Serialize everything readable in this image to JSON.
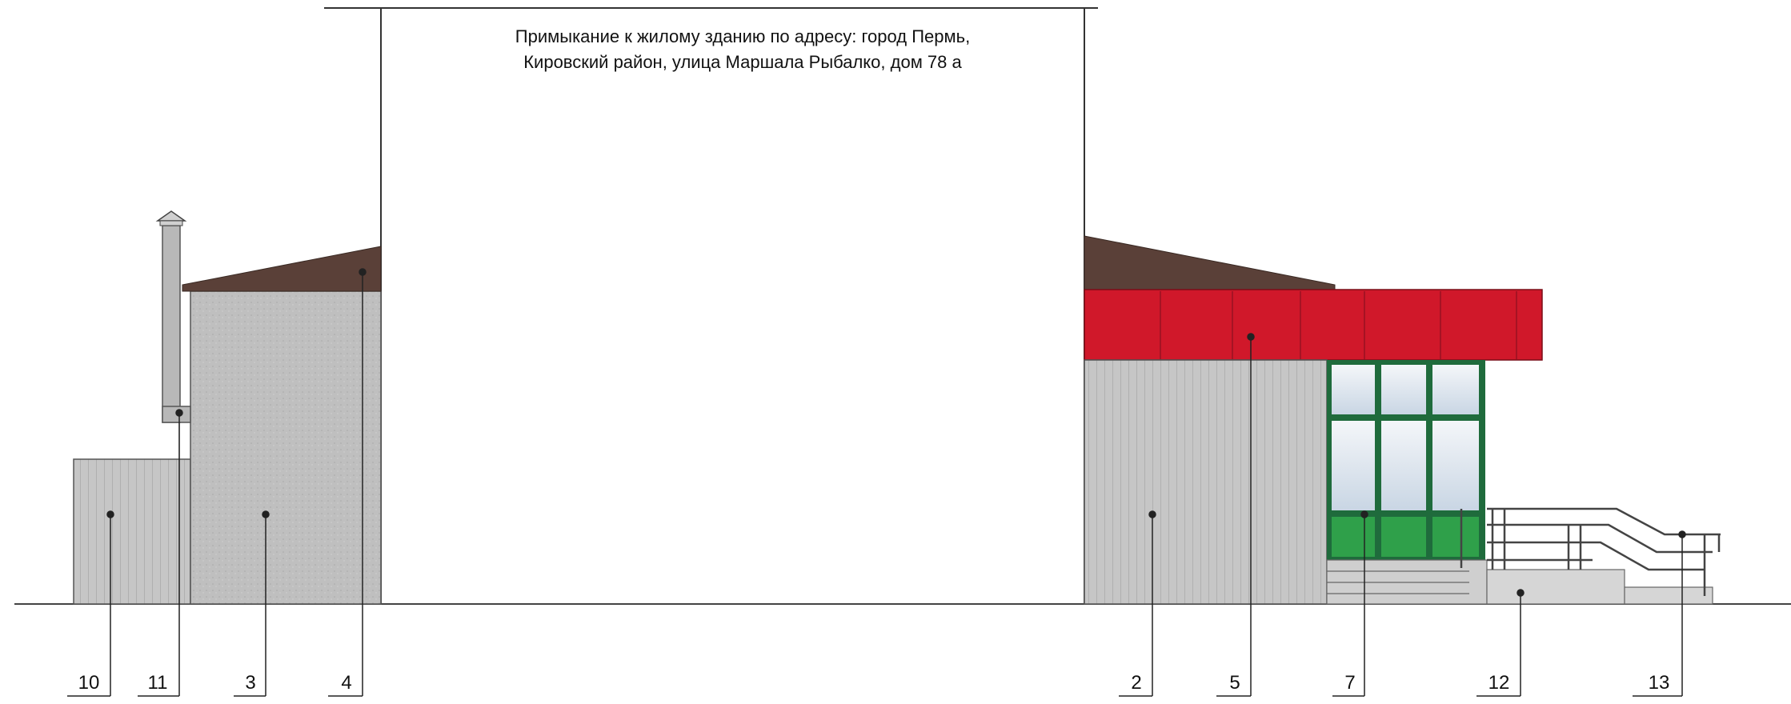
{
  "note": {
    "line1": "Примыкание к жилому зданию по адресу: город Пермь,",
    "line2": "Кировский район, улица Маршала Рыбалко, дом 78 а"
  },
  "callouts": [
    {
      "id": "10",
      "label": "10"
    },
    {
      "id": "11",
      "label": "11"
    },
    {
      "id": "3",
      "label": "3"
    },
    {
      "id": "4",
      "label": "4"
    },
    {
      "id": "2",
      "label": "2"
    },
    {
      "id": "5",
      "label": "5"
    },
    {
      "id": "7",
      "label": "7"
    },
    {
      "id": "12",
      "label": "12"
    },
    {
      "id": "13",
      "label": "13"
    }
  ],
  "colors": {
    "roof": "#5a4038",
    "red_fascia": "#d0182a",
    "siding": "#c4c4c4",
    "panel_grey": "#bdbdbd",
    "glass": "#dde6ef",
    "green_panel": "#2fa04a",
    "frame_green": "#1f6b3c",
    "steps": "#cfcfcf",
    "ground_line": "#444444"
  }
}
